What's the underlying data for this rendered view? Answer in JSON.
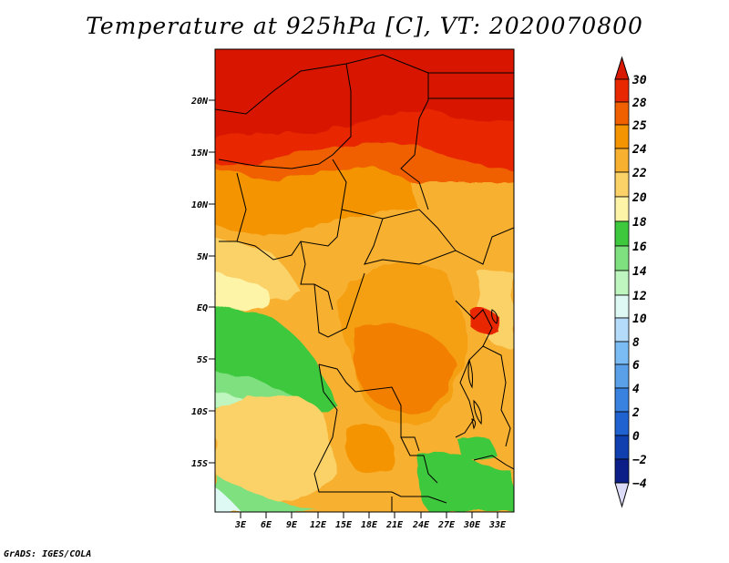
{
  "title": "Temperature at 925hPa [C], VT: 2020070800",
  "footer": "GrADS: IGES/COLA",
  "map": {
    "lat_ticks": [
      "20N",
      "15N",
      "10N",
      "5N",
      "EQ",
      "5S",
      "10S",
      "15S"
    ],
    "lon_ticks": [
      "3E",
      "6E",
      "9E",
      "12E",
      "15E",
      "18E",
      "21E",
      "24E",
      "27E",
      "30E",
      "33E"
    ]
  },
  "colorbar": {
    "labels": [
      "30",
      "28",
      "25",
      "24",
      "22",
      "20",
      "18",
      "16",
      "14",
      "12",
      "10",
      "8",
      "6",
      "4",
      "2",
      "0",
      "−2",
      "−4"
    ],
    "colors": {
      "above_30": "#d81800",
      "28_30": "#e82800",
      "25_28": "#f06000",
      "24_25": "#f49400",
      "22_24": "#f8b030",
      "20_22": "#fad268",
      "18_20": "#fef4a8",
      "16_18": "#3ec83e",
      "14_16": "#7ee07e",
      "12_14": "#bff5bf",
      "10_12": "#def9f4",
      "8_10": "#b4dcfa",
      "6_8": "#7cbcf4",
      "4_6": "#5aa0e8",
      "2_4": "#3a82e0",
      "0_2": "#1f62d0",
      "m2_0": "#1040b0",
      "m4_m2": "#0c1e88",
      "below_m4": "#dcdcf8"
    }
  }
}
